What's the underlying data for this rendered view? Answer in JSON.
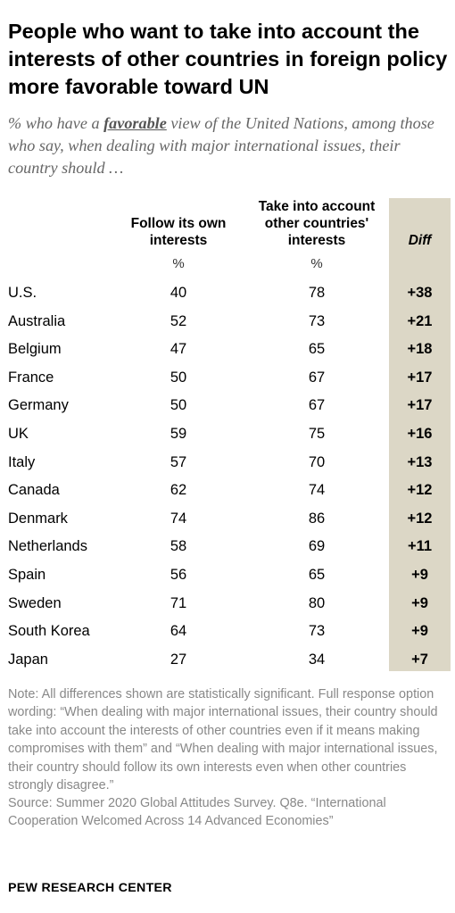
{
  "title": "People who want to take into account the interests of other countries in foreign policy more favorable toward UN",
  "subtitle": {
    "before": "% who have a ",
    "emphasis": "favorable",
    "after": " view of the United Nations, among those who say, when dealing with major international issues, their country should …"
  },
  "columns": {
    "col1_header": "Follow its own interests",
    "col2_header": "Take into account other countries' interests",
    "diff_header": "Diff",
    "unit": "%"
  },
  "colors": {
    "diff_column_bg": "#dcd7c6",
    "note_text": "#888888"
  },
  "chart_data": {
    "type": "table",
    "columns": [
      "Follow its own interests",
      "Take into account other countries' interests",
      "Diff"
    ],
    "rows": [
      {
        "country": "U.S.",
        "own": "40",
        "others": "78",
        "diff": "+38"
      },
      {
        "country": "Australia",
        "own": "52",
        "others": "73",
        "diff": "+21"
      },
      {
        "country": "Belgium",
        "own": "47",
        "others": "65",
        "diff": "+18"
      },
      {
        "country": "France",
        "own": "50",
        "others": "67",
        "diff": "+17"
      },
      {
        "country": "Germany",
        "own": "50",
        "others": "67",
        "diff": "+17"
      },
      {
        "country": "UK",
        "own": "59",
        "others": "75",
        "diff": "+16"
      },
      {
        "country": "Italy",
        "own": "57",
        "others": "70",
        "diff": "+13"
      },
      {
        "country": "Canada",
        "own": "62",
        "others": "74",
        "diff": "+12"
      },
      {
        "country": "Denmark",
        "own": "74",
        "others": "86",
        "diff": "+12"
      },
      {
        "country": "Netherlands",
        "own": "58",
        "others": "69",
        "diff": "+11"
      },
      {
        "country": "Spain",
        "own": "56",
        "others": "65",
        "diff": "+9"
      },
      {
        "country": "Sweden",
        "own": "71",
        "others": "80",
        "diff": "+9"
      },
      {
        "country": "South Korea",
        "own": "64",
        "others": "73",
        "diff": "+9"
      },
      {
        "country": "Japan",
        "own": "27",
        "others": "34",
        "diff": "+7"
      }
    ]
  },
  "note": "Note: All differences shown are statistically significant. Full response option wording: “When dealing with major international issues, their country should take into account the interests of other countries even if it means making compromises with them” and “When dealing with major international issues, their country should follow its own interests even when other countries strongly disagree.”",
  "source": "Source: Summer 2020 Global Attitudes Survey. Q8e. “International Cooperation Welcomed Across 14 Advanced Economies”",
  "footer": "PEW RESEARCH CENTER"
}
